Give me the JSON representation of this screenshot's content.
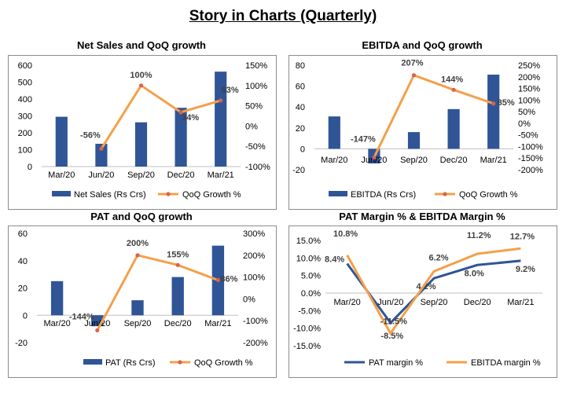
{
  "page_title": "Story in Charts (Quarterly)",
  "colors": {
    "bar": "#2f5597",
    "line": "#f4a04a",
    "marker": "#d9634a",
    "pat_line": "#2f5597",
    "ebitda_line": "#f4a04a"
  },
  "chart_data": [
    {
      "type": "bar",
      "title": "Net Sales and QoQ growth",
      "categories": [
        "Mar/20",
        "Jun/20",
        "Sep/20",
        "Dec/20",
        "Mar/21"
      ],
      "ylim": [
        0,
        600
      ],
      "yticks": [
        "0",
        "100",
        "200",
        "300",
        "400",
        "500",
        "600"
      ],
      "y2lim": [
        -100,
        150
      ],
      "y2ticks": [
        "-100%",
        "-50%",
        "0%",
        "50%",
        "100%",
        "150%"
      ],
      "series": [
        {
          "name": "Net Sales (Rs Crs)",
          "type": "bar",
          "values": [
            295,
            135,
            262,
            348,
            562
          ]
        },
        {
          "name": "QoQ Growth %",
          "type": "line",
          "axis": "secondary",
          "values": [
            null,
            -56,
            100,
            34,
            63
          ],
          "labels": [
            "",
            "-56%",
            "100%",
            "34%",
            "63%"
          ]
        }
      ]
    },
    {
      "type": "bar",
      "title": "EBITDA and QoQ growth",
      "categories": [
        "Mar/20",
        "Jun/20",
        "Sep/20",
        "Dec/20",
        "Mar/21"
      ],
      "ylim": [
        -20,
        80
      ],
      "yticks": [
        "-20",
        "0",
        "20",
        "40",
        "60",
        "80"
      ],
      "y2lim": [
        -200,
        250
      ],
      "y2ticks": [
        "-200%",
        "-150%",
        "-100%",
        "-50%",
        "0%",
        "50%",
        "100%",
        "150%",
        "200%",
        "250%"
      ],
      "series": [
        {
          "name": "EBITDA (Rs Crs)",
          "type": "bar",
          "values": [
            31,
            -14,
            16,
            38,
            71
          ]
        },
        {
          "name": "QoQ Growth %",
          "type": "line",
          "axis": "secondary",
          "values": [
            null,
            -147,
            207,
            144,
            85
          ],
          "labels": [
            "",
            "-147%",
            "207%",
            "144%",
            "85%"
          ]
        }
      ]
    },
    {
      "type": "bar",
      "title": "PAT and QoQ growth",
      "categories": [
        "Mar/20",
        "Jun/20",
        "Sep/20",
        "Dec/20",
        "Mar/21"
      ],
      "ylim": [
        -20,
        60
      ],
      "yticks": [
        "-20",
        "0",
        "20",
        "40",
        "60"
      ],
      "y2lim": [
        -200,
        300
      ],
      "y2ticks": [
        "-200%",
        "-100%",
        "0%",
        "100%",
        "200%",
        "300%"
      ],
      "series": [
        {
          "name": "PAT (Rs Crs)",
          "type": "bar",
          "values": [
            25,
            -8,
            11,
            28,
            51
          ]
        },
        {
          "name": "QoQ Growth %",
          "type": "line",
          "axis": "secondary",
          "values": [
            null,
            -144,
            200,
            155,
            86
          ],
          "labels": [
            "",
            "-144%",
            "200%",
            "155%",
            "86%"
          ]
        }
      ]
    },
    {
      "type": "line",
      "title": "PAT Margin % & EBITDA Margin %",
      "categories": [
        "Mar/20",
        "Jun/20",
        "Sep/20",
        "Dec/20",
        "Mar/21"
      ],
      "ylim": [
        -15,
        15
      ],
      "yticks": [
        "-15.0%",
        "-10.0%",
        "-5.0%",
        "0.0%",
        "5.0%",
        "10.0%",
        "15.0%"
      ],
      "series": [
        {
          "name": "PAT margin %",
          "values": [
            8.4,
            -8.5,
            4.2,
            8.0,
            9.2
          ],
          "labels": [
            "8.4%",
            "-8.5%",
            "4.2%",
            "8.0%",
            "9.2%"
          ]
        },
        {
          "name": "EBITDA margin %",
          "values": [
            10.8,
            -11.5,
            6.2,
            11.2,
            12.7
          ],
          "labels": [
            "10.8%",
            "-11.5%",
            "6.2%",
            "11.2%",
            "12.7%"
          ]
        }
      ]
    }
  ]
}
